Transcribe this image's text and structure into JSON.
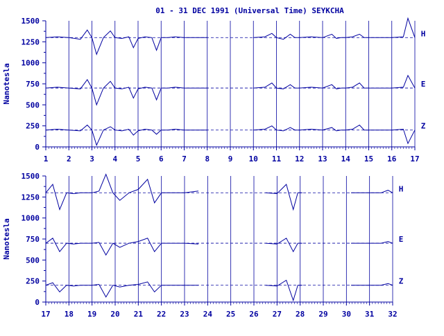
{
  "colors": {
    "ink": "#0000a0",
    "background": "#ffffff"
  },
  "chart_data": [
    {
      "type": "line",
      "title": "01 - 31 DEC 1991 (Universal Time) SEYKCHA",
      "xlabel": "",
      "ylabel": "Nanotesla",
      "xlim": [
        1,
        17
      ],
      "ylim": [
        0,
        1500
      ],
      "x_ticks": [
        "1",
        "2",
        "3",
        "4",
        "5",
        "6",
        "7",
        "8",
        "9",
        "10",
        "11",
        "12",
        "13",
        "14",
        "15",
        "16",
        "17"
      ],
      "y_ticks": [
        "0",
        "250",
        "500",
        "750",
        "1000",
        "1250",
        "1500"
      ],
      "grid": "vertical lines at each day",
      "reference_levels": [
        1300,
        700,
        200
      ],
      "series": [
        {
          "name": "H",
          "baseline": 1300,
          "x": [
            1.0,
            1.5,
            2.0,
            2.5,
            2.8,
            3.0,
            3.2,
            3.5,
            3.8,
            4.0,
            4.3,
            4.6,
            4.8,
            5.0,
            5.3,
            5.6,
            5.8,
            6.0,
            6.3,
            6.6,
            7.0,
            7.5,
            8.0,
            10.0,
            10.5,
            10.8,
            11.0,
            11.3,
            11.6,
            11.8,
            12.0,
            12.5,
            13.0,
            13.4,
            13.6,
            13.8,
            14.0,
            14.3,
            14.6,
            14.8,
            15.0,
            15.5,
            16.0,
            16.5,
            16.7,
            17.0
          ],
          "y": [
            1300,
            1310,
            1300,
            1280,
            1390,
            1300,
            1100,
            1300,
            1380,
            1300,
            1290,
            1310,
            1180,
            1290,
            1310,
            1300,
            1150,
            1300,
            1300,
            1310,
            1300,
            1300,
            1300,
            1300,
            1310,
            1350,
            1300,
            1280,
            1340,
            1300,
            1300,
            1310,
            1300,
            1340,
            1290,
            1300,
            1300,
            1310,
            1340,
            1300,
            1300,
            1300,
            1300,
            1310,
            1530,
            1300
          ]
        },
        {
          "name": "E",
          "baseline": 700,
          "x": [
            1.0,
            1.5,
            2.0,
            2.5,
            2.8,
            3.0,
            3.2,
            3.5,
            3.8,
            4.0,
            4.3,
            4.6,
            4.8,
            5.0,
            5.3,
            5.6,
            5.8,
            6.0,
            6.3,
            6.6,
            7.0,
            7.5,
            8.0,
            10.0,
            10.5,
            10.8,
            11.0,
            11.3,
            11.6,
            11.8,
            12.0,
            12.5,
            13.0,
            13.4,
            13.6,
            13.8,
            14.0,
            14.3,
            14.6,
            14.8,
            15.0,
            15.5,
            16.0,
            16.5,
            16.7,
            17.0
          ],
          "y": [
            700,
            710,
            700,
            690,
            800,
            700,
            500,
            700,
            780,
            700,
            690,
            710,
            580,
            690,
            710,
            700,
            560,
            700,
            700,
            710,
            700,
            700,
            700,
            700,
            710,
            760,
            700,
            690,
            740,
            700,
            700,
            710,
            700,
            740,
            690,
            700,
            700,
            710,
            760,
            700,
            700,
            700,
            700,
            710,
            850,
            700
          ]
        },
        {
          "name": "Z",
          "baseline": 200,
          "x": [
            1.0,
            1.5,
            2.0,
            2.5,
            2.8,
            3.0,
            3.2,
            3.5,
            3.8,
            4.0,
            4.3,
            4.6,
            4.8,
            5.0,
            5.3,
            5.6,
            5.8,
            6.0,
            6.3,
            6.6,
            7.0,
            7.5,
            8.0,
            10.0,
            10.5,
            10.8,
            11.0,
            11.3,
            11.6,
            11.8,
            12.0,
            12.5,
            13.0,
            13.4,
            13.6,
            13.8,
            14.0,
            14.3,
            14.6,
            14.8,
            15.0,
            15.5,
            16.0,
            16.5,
            16.7,
            17.0
          ],
          "y": [
            200,
            210,
            200,
            190,
            260,
            200,
            20,
            200,
            240,
            200,
            190,
            210,
            140,
            190,
            210,
            200,
            150,
            200,
            200,
            210,
            200,
            200,
            200,
            200,
            210,
            250,
            200,
            190,
            230,
            200,
            200,
            210,
            200,
            230,
            190,
            200,
            200,
            210,
            260,
            200,
            200,
            200,
            200,
            210,
            40,
            200
          ]
        }
      ],
      "legend": [
        "H",
        "E",
        "Z"
      ],
      "legend_placement": "right"
    },
    {
      "type": "line",
      "title": "",
      "xlabel": "",
      "ylabel": "Nanotesla",
      "xlim": [
        17,
        32
      ],
      "ylim": [
        0,
        1500
      ],
      "x_ticks": [
        "17",
        "18",
        "19",
        "20",
        "21",
        "22",
        "23",
        "24",
        "25",
        "26",
        "27",
        "28",
        "29",
        "30",
        "31",
        "32"
      ],
      "y_ticks": [
        "0",
        "250",
        "500",
        "750",
        "1000",
        "1250",
        "1500"
      ],
      "grid": "vertical lines at each day",
      "reference_levels": [
        1300,
        700,
        200
      ],
      "series": [
        {
          "name": "H",
          "baseline": 1300,
          "x": [
            17.0,
            17.3,
            17.6,
            17.9,
            18.2,
            18.5,
            19.0,
            19.3,
            19.6,
            19.9,
            20.2,
            20.6,
            21.0,
            21.4,
            21.7,
            22.0,
            22.5,
            23.0,
            23.6,
            26.5,
            27.0,
            27.4,
            27.7,
            27.9,
            28.1,
            30.2,
            30.6,
            31.0,
            31.5,
            31.8,
            32.0
          ],
          "y": [
            1300,
            1400,
            1100,
            1300,
            1290,
            1300,
            1300,
            1320,
            1520,
            1300,
            1210,
            1300,
            1340,
            1460,
            1180,
            1300,
            1300,
            1300,
            1320,
            1300,
            1290,
            1400,
            1100,
            1300,
            1300,
            1300,
            1300,
            1300,
            1300,
            1330,
            1300
          ]
        },
        {
          "name": "E",
          "baseline": 700,
          "x": [
            17.0,
            17.3,
            17.6,
            17.9,
            18.2,
            18.5,
            19.0,
            19.3,
            19.6,
            19.9,
            20.2,
            20.6,
            21.0,
            21.4,
            21.7,
            22.0,
            22.5,
            23.0,
            23.6,
            26.5,
            27.0,
            27.4,
            27.7,
            27.9,
            28.1,
            30.2,
            30.6,
            31.0,
            31.5,
            31.8,
            32.0
          ],
          "y": [
            700,
            760,
            600,
            700,
            690,
            700,
            700,
            710,
            560,
            700,
            650,
            700,
            720,
            760,
            600,
            700,
            700,
            700,
            690,
            700,
            690,
            760,
            600,
            700,
            700,
            700,
            700,
            700,
            700,
            720,
            700
          ]
        },
        {
          "name": "Z",
          "baseline": 200,
          "x": [
            17.0,
            17.3,
            17.6,
            17.9,
            18.2,
            18.5,
            19.0,
            19.3,
            19.6,
            19.9,
            20.2,
            20.6,
            21.0,
            21.4,
            21.7,
            22.0,
            22.5,
            23.0,
            23.6,
            26.5,
            27.0,
            27.4,
            27.7,
            27.9,
            28.1,
            30.2,
            30.6,
            31.0,
            31.5,
            31.8,
            32.0
          ],
          "y": [
            200,
            230,
            120,
            200,
            190,
            200,
            200,
            210,
            60,
            200,
            180,
            200,
            210,
            240,
            120,
            200,
            200,
            200,
            200,
            200,
            190,
            260,
            20,
            200,
            200,
            200,
            200,
            200,
            200,
            220,
            200
          ]
        }
      ],
      "legend": [
        "H",
        "E",
        "Z"
      ],
      "legend_placement": "right"
    }
  ]
}
